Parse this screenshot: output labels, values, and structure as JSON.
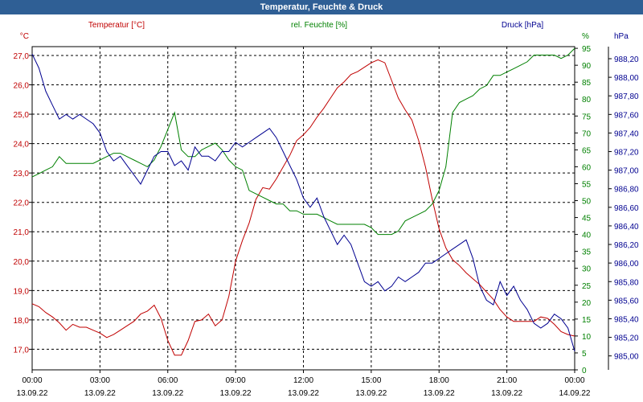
{
  "window": {
    "title": "Temperatur, Feuchte & Druck"
  },
  "chart_data": {
    "type": "line",
    "title": "Temperatur, Feuchte & Druck",
    "grid": true,
    "x_ticks": [
      {
        "time": "00:00",
        "date": "13.09.22"
      },
      {
        "time": "03:00",
        "date": "13.09.22"
      },
      {
        "time": "06:00",
        "date": "13.09.22"
      },
      {
        "time": "09:00",
        "date": "13.09.22"
      },
      {
        "time": "12:00",
        "date": "13.09.22"
      },
      {
        "time": "15:00",
        "date": "13.09.22"
      },
      {
        "time": "18:00",
        "date": "13.09.22"
      },
      {
        "time": "21:00",
        "date": "13.09.22"
      },
      {
        "time": "00:00",
        "date": "14.09.22"
      }
    ],
    "x_range_hours": [
      0,
      24
    ],
    "axes": {
      "left": {
        "label": "Temperatur [°C]",
        "unit": "°C",
        "range": [
          16.3,
          27.3
        ],
        "ticks": [
          "17,0",
          "18,0",
          "19,0",
          "20,0",
          "21,0",
          "22,0",
          "23,0",
          "24,0",
          "25,0",
          "26,0",
          "27,0"
        ],
        "color": "#c00000"
      },
      "right1": {
        "label": "rel. Feuchte [%]",
        "unit": "%",
        "range": [
          0,
          95.5
        ],
        "ticks": [
          "0",
          "5",
          "10",
          "15",
          "20",
          "25",
          "30",
          "35",
          "40",
          "45",
          "50",
          "55",
          "60",
          "65",
          "70",
          "75",
          "80",
          "85",
          "90",
          "95"
        ],
        "color": "#008000"
      },
      "right2": {
        "label": "Druck [hPa]",
        "unit": "hPa",
        "range": [
          984.85,
          988.33
        ],
        "ticks": [
          "985,00",
          "985,20",
          "985,40",
          "985,60",
          "985,80",
          "986,00",
          "986,20",
          "986,40",
          "986,60",
          "986,80",
          "987,00",
          "987,20",
          "987,40",
          "987,60",
          "987,80",
          "988,00",
          "988,20"
        ],
        "color": "#000090"
      }
    },
    "series": [
      {
        "name": "Temperatur [°C]",
        "axis": "left",
        "color": "#c00000",
        "x": [
          0,
          0.3,
          0.6,
          0.9,
          1.2,
          1.5,
          1.8,
          2.1,
          2.4,
          2.7,
          3.0,
          3.3,
          3.6,
          3.9,
          4.2,
          4.5,
          4.8,
          5.1,
          5.4,
          5.7,
          6.0,
          6.3,
          6.6,
          6.9,
          7.2,
          7.5,
          7.8,
          8.1,
          8.4,
          8.7,
          9.0,
          9.3,
          9.6,
          9.9,
          10.2,
          10.5,
          10.8,
          11.1,
          11.4,
          11.7,
          12.0,
          12.3,
          12.6,
          12.9,
          13.2,
          13.5,
          13.8,
          14.1,
          14.4,
          14.7,
          15.0,
          15.3,
          15.6,
          15.9,
          16.2,
          16.5,
          16.8,
          17.1,
          17.4,
          17.7,
          18.0,
          18.3,
          18.6,
          18.9,
          19.2,
          19.5,
          19.8,
          20.1,
          20.4,
          20.7,
          21.0,
          21.3,
          21.6,
          21.9,
          22.2,
          22.5,
          22.8,
          23.1,
          23.4,
          23.7,
          24.0
        ],
        "values": [
          18.55,
          18.45,
          18.25,
          18.1,
          17.9,
          17.65,
          17.85,
          17.75,
          17.75,
          17.65,
          17.55,
          17.4,
          17.5,
          17.65,
          17.8,
          17.95,
          18.2,
          18.3,
          18.5,
          18.05,
          17.3,
          16.8,
          16.8,
          17.3,
          17.95,
          18.0,
          18.2,
          17.8,
          18.0,
          18.8,
          20.0,
          20.7,
          21.3,
          22.1,
          22.5,
          22.45,
          22.8,
          23.2,
          23.6,
          24.1,
          24.3,
          24.55,
          24.9,
          25.2,
          25.55,
          25.9,
          26.1,
          26.35,
          26.45,
          26.6,
          26.75,
          26.85,
          26.75,
          26.15,
          25.55,
          25.15,
          24.8,
          24.1,
          23.2,
          22.1,
          21.1,
          20.45,
          20.05,
          19.85,
          19.6,
          19.4,
          19.2,
          18.95,
          18.7,
          18.35,
          18.1,
          17.95,
          17.95,
          17.95,
          17.95,
          18.1,
          18.05,
          17.85,
          17.6,
          17.5,
          17.45
        ]
      },
      {
        "name": "rel. Feuchte [%]",
        "axis": "right1",
        "color": "#008000",
        "x": [
          0,
          0.3,
          0.6,
          0.9,
          1.2,
          1.5,
          1.8,
          2.1,
          2.4,
          2.7,
          3.0,
          3.3,
          3.6,
          3.9,
          4.2,
          4.5,
          4.8,
          5.1,
          5.4,
          5.7,
          6.0,
          6.3,
          6.6,
          6.9,
          7.2,
          7.5,
          7.8,
          8.1,
          8.4,
          8.7,
          9.0,
          9.3,
          9.6,
          9.9,
          10.2,
          10.5,
          10.8,
          11.1,
          11.4,
          11.7,
          12.0,
          12.3,
          12.6,
          12.9,
          13.2,
          13.5,
          13.8,
          14.1,
          14.4,
          14.7,
          15.0,
          15.3,
          15.6,
          15.9,
          16.2,
          16.5,
          16.8,
          17.1,
          17.4,
          17.7,
          18.0,
          18.3,
          18.6,
          18.9,
          19.2,
          19.5,
          19.8,
          20.1,
          20.4,
          20.7,
          21.0,
          21.3,
          21.6,
          21.9,
          22.2,
          22.5,
          22.8,
          23.1,
          23.4,
          23.7,
          24.0
        ],
        "values": [
          57,
          58,
          59,
          60,
          63,
          61,
          61,
          61,
          61,
          61,
          62,
          63,
          64,
          64,
          63,
          62,
          61,
          60,
          62,
          66,
          71,
          76,
          65,
          63,
          63,
          65,
          66,
          67,
          65,
          62,
          60,
          59,
          53,
          52,
          51,
          50,
          49,
          49,
          47,
          47,
          46,
          46,
          46,
          45,
          44,
          43,
          43,
          43,
          43,
          43,
          42,
          40,
          40,
          40,
          41,
          44,
          45,
          46,
          47,
          49,
          53,
          60,
          76,
          79,
          80,
          81,
          83,
          84,
          87,
          87,
          88,
          89,
          90,
          91,
          93,
          93,
          93,
          93,
          92,
          93,
          95
        ]
      },
      {
        "name": "Druck [hPa]",
        "axis": "right2",
        "color": "#000090",
        "x": [
          0,
          0.3,
          0.6,
          0.9,
          1.2,
          1.5,
          1.8,
          2.1,
          2.4,
          2.7,
          3.0,
          3.3,
          3.6,
          3.9,
          4.2,
          4.5,
          4.8,
          5.1,
          5.4,
          5.7,
          6.0,
          6.3,
          6.6,
          6.9,
          7.2,
          7.5,
          7.8,
          8.1,
          8.4,
          8.7,
          9.0,
          9.3,
          9.6,
          9.9,
          10.2,
          10.5,
          10.8,
          11.1,
          11.4,
          11.7,
          12.0,
          12.3,
          12.6,
          12.9,
          13.2,
          13.5,
          13.8,
          14.1,
          14.4,
          14.7,
          15.0,
          15.3,
          15.6,
          15.9,
          16.2,
          16.5,
          16.8,
          17.1,
          17.4,
          17.7,
          18.0,
          18.3,
          18.6,
          18.9,
          19.2,
          19.5,
          19.8,
          20.1,
          20.4,
          20.7,
          21.0,
          21.3,
          21.6,
          21.9,
          22.2,
          22.5,
          22.8,
          23.1,
          23.4,
          23.7,
          24.0
        ],
        "values": [
          988.25,
          988.1,
          987.85,
          987.7,
          987.55,
          987.6,
          987.55,
          987.6,
          987.55,
          987.5,
          987.4,
          987.2,
          987.1,
          987.15,
          987.05,
          986.95,
          986.85,
          987.0,
          987.15,
          987.2,
          987.2,
          987.05,
          987.1,
          987.0,
          987.25,
          987.15,
          987.15,
          987.1,
          987.2,
          987.2,
          987.3,
          987.25,
          987.3,
          987.35,
          987.4,
          987.45,
          987.35,
          987.2,
          987.05,
          986.9,
          986.7,
          986.6,
          986.7,
          986.5,
          986.35,
          986.2,
          986.3,
          986.2,
          986.0,
          985.8,
          985.75,
          985.8,
          985.7,
          985.75,
          985.85,
          985.8,
          985.85,
          985.9,
          986.0,
          986.0,
          986.05,
          986.1,
          986.15,
          986.2,
          986.25,
          986.05,
          985.75,
          985.6,
          985.55,
          985.8,
          985.65,
          985.75,
          985.6,
          985.5,
          985.35,
          985.3,
          985.35,
          985.45,
          985.4,
          985.3,
          985.05
        ]
      }
    ]
  }
}
